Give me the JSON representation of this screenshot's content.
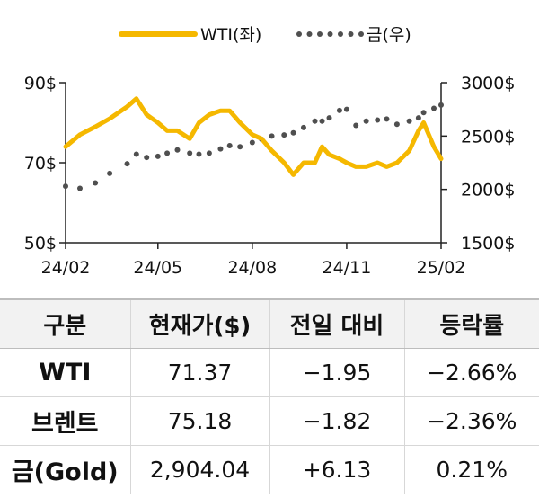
{
  "chart_data": {
    "type": "line",
    "x_ticks": [
      "24/02",
      "24/05",
      "24/08",
      "24/11",
      "25/02"
    ],
    "y_left": {
      "ticks": [
        "50$",
        "70$",
        "90$"
      ],
      "range": [
        50,
        90
      ]
    },
    "y_right": {
      "ticks": [
        "1500$",
        "2000$",
        "2500$",
        "3000$"
      ],
      "range": [
        1500,
        3000
      ]
    },
    "legend_position": "top",
    "grid": false,
    "series": [
      {
        "name": "WTI(좌)",
        "axis": "left",
        "style": "solid",
        "color": "#f5b800",
        "x": [
          "24/02/01",
          "24/02/15",
          "24/03/01",
          "24/03/15",
          "24/04/01",
          "24/04/10",
          "24/04/20",
          "24/05/01",
          "24/05/10",
          "24/05/20",
          "24/06/01",
          "24/06/10",
          "24/06/20",
          "24/07/01",
          "24/07/10",
          "24/07/20",
          "24/08/01",
          "24/08/10",
          "24/08/20",
          "24/09/01",
          "24/09/10",
          "24/09/20",
          "24/10/01",
          "24/10/08",
          "24/10/15",
          "24/10/25",
          "24/11/01",
          "24/11/10",
          "24/11/20",
          "24/12/01",
          "24/12/10",
          "24/12/20",
          "25/01/01",
          "25/01/10",
          "25/01/15",
          "25/01/25",
          "25/02/01"
        ],
        "values": [
          74,
          77,
          79,
          81,
          84,
          86,
          82,
          80,
          78,
          78,
          76,
          80,
          82,
          83,
          83,
          80,
          77,
          76,
          73,
          70,
          67,
          70,
          70,
          74,
          72,
          71,
          70,
          69,
          69,
          70,
          69,
          70,
          73,
          78,
          80,
          74,
          71
        ]
      },
      {
        "name": "금(우)",
        "axis": "right",
        "style": "dotted",
        "color": "#4f4f4f",
        "x": [
          "24/02/01",
          "24/02/15",
          "24/03/01",
          "24/03/15",
          "24/04/01",
          "24/04/10",
          "24/04/20",
          "24/05/01",
          "24/05/10",
          "24/05/20",
          "24/06/01",
          "24/06/10",
          "24/06/20",
          "24/07/01",
          "24/07/10",
          "24/07/20",
          "24/08/01",
          "24/08/10",
          "24/08/20",
          "24/09/01",
          "24/09/10",
          "24/09/20",
          "24/10/01",
          "24/10/08",
          "24/10/15",
          "24/10/25",
          "24/11/01",
          "24/11/10",
          "24/11/20",
          "24/12/01",
          "24/12/10",
          "24/12/20",
          "25/01/01",
          "25/01/10",
          "25/01/15",
          "25/01/25",
          "25/02/01"
        ],
        "values": [
          2030,
          2010,
          2060,
          2150,
          2240,
          2330,
          2300,
          2310,
          2340,
          2370,
          2340,
          2330,
          2340,
          2380,
          2410,
          2400,
          2440,
          2470,
          2500,
          2510,
          2530,
          2580,
          2640,
          2640,
          2670,
          2740,
          2750,
          2600,
          2640,
          2650,
          2660,
          2610,
          2640,
          2670,
          2720,
          2760,
          2790
        ]
      }
    ]
  },
  "table": {
    "headers": [
      "구분",
      "현재가($)",
      "전일 대비",
      "등락률"
    ],
    "rows": [
      {
        "name": "WTI",
        "price": "71.37",
        "change": "−1.95",
        "rate": "−2.66%"
      },
      {
        "name": "브렌트",
        "price": "75.18",
        "change": "−1.82",
        "rate": "−2.36%"
      },
      {
        "name": "금(Gold)",
        "price": "2,904.04",
        "change": "+6.13",
        "rate": "0.21%"
      }
    ]
  }
}
